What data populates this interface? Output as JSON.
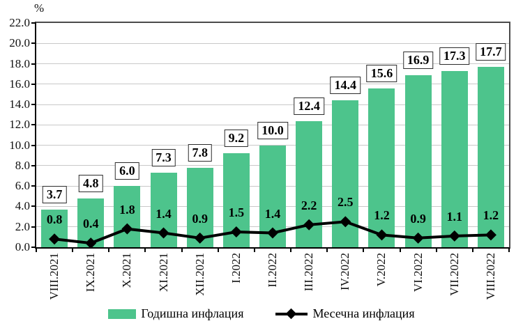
{
  "chart_data": {
    "type": "bar",
    "title": "",
    "ylabel": "%",
    "xlabel": "",
    "ylim": [
      0,
      22
    ],
    "ytick_step": 2,
    "grid": true,
    "grid_color": "#c8c8c8",
    "legend_position": "bottom",
    "categories": [
      "VIII.2021",
      "IX.2021",
      "X.2021",
      "XI.2021",
      "XII.2021",
      "I.2022",
      "II.2022",
      "III.2022",
      "IV.2022",
      "V.2022",
      "VI.2022",
      "VII.2022",
      "VIII.2022"
    ],
    "series": [
      {
        "name": "Годишна инфлация",
        "type": "bar",
        "color": "#4dc48c",
        "values": [
          3.7,
          4.8,
          6.0,
          7.3,
          7.8,
          9.2,
          10.0,
          12.4,
          14.4,
          15.6,
          16.9,
          17.3,
          17.7
        ]
      },
      {
        "name": "Месечна инфлация",
        "type": "line",
        "color": "#000000",
        "marker": "diamond",
        "values": [
          0.8,
          0.4,
          1.8,
          1.4,
          0.9,
          1.5,
          1.4,
          2.2,
          2.5,
          1.2,
          0.9,
          1.1,
          1.2
        ]
      }
    ]
  }
}
